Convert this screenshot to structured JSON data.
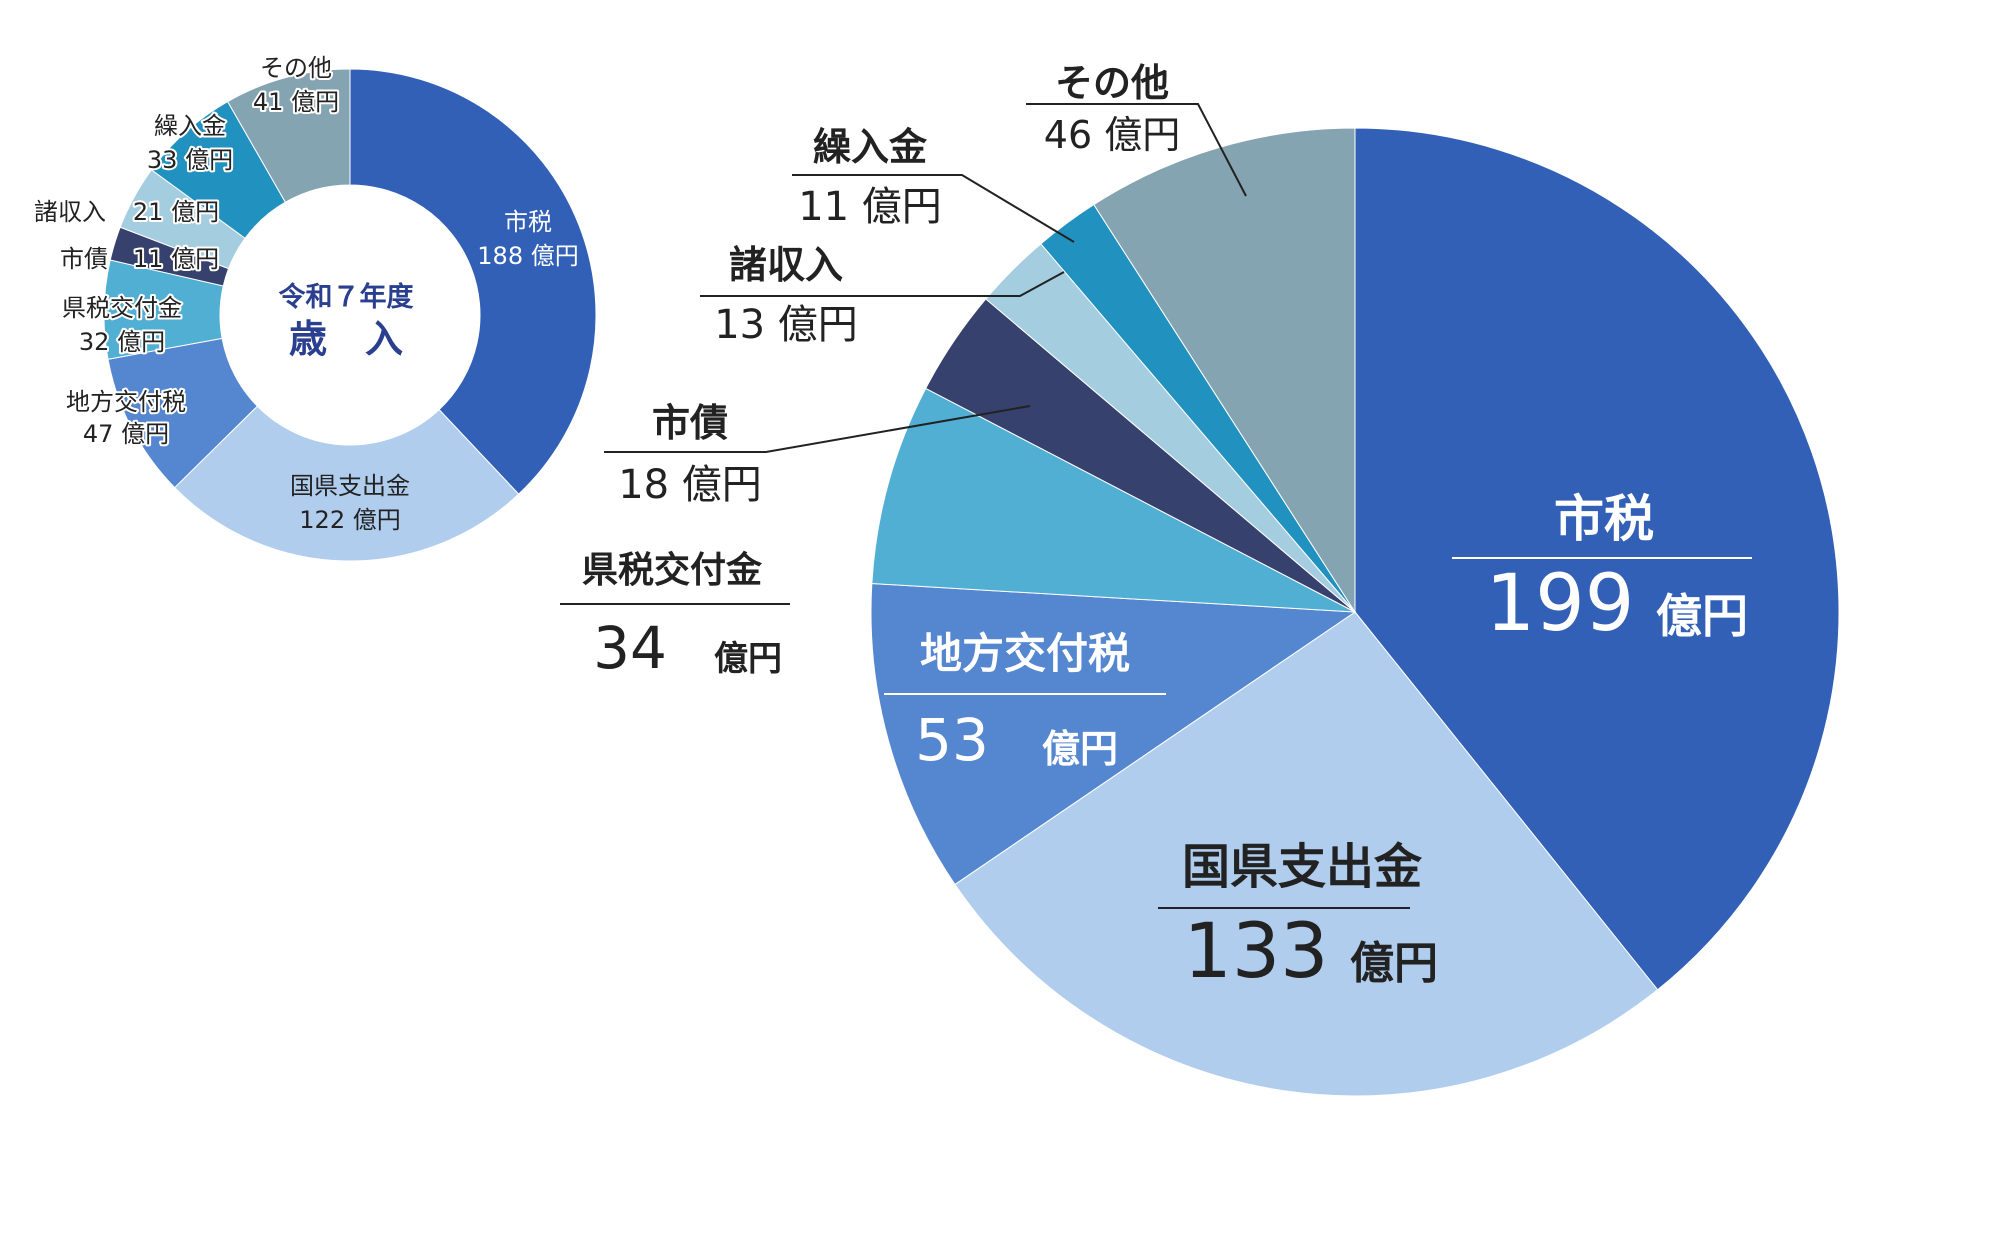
{
  "colors": {
    "市税": "#3160b6",
    "国県支出金": "#b0cdee",
    "地方交付税": "#5586d0",
    "県税交付金": "#51afd4",
    "市債": "#37416d",
    "諸収入": "#a5cde0",
    "繰入金": "#2191c0",
    "その他": "#85a4b1",
    "label_dark": "#222222",
    "label_light": "#ffffff",
    "center_text": "#2a3f8f"
  },
  "chart_data": [
    {
      "type": "pie",
      "variant": "donut",
      "title": "",
      "center_label": {
        "line1": "令和７年度",
        "line2": "歳　入"
      },
      "unit": "億円",
      "slices": [
        {
          "label": "市税",
          "value": 188,
          "value_text": "188 億円"
        },
        {
          "label": "国県支出金",
          "value": 122,
          "value_text": "122 億円"
        },
        {
          "label": "地方交付税",
          "value": 47,
          "value_text": "47 億円"
        },
        {
          "label": "県税交付金",
          "value": 32,
          "value_text": "32 億円"
        },
        {
          "label": "市債",
          "value": 11,
          "value_text": "11 億円"
        },
        {
          "label": "諸収入",
          "value": 21,
          "value_text": "21 億円"
        },
        {
          "label": "繰入金",
          "value": 33,
          "value_text": "33 億円"
        },
        {
          "label": "その他",
          "value": 41,
          "value_text": "41 億円"
        }
      ]
    },
    {
      "type": "pie",
      "title": "",
      "unit": "億円",
      "slices": [
        {
          "label": "市税",
          "value": 199,
          "value_text": "199"
        },
        {
          "label": "国県支出金",
          "value": 133,
          "value_text": "133"
        },
        {
          "label": "地方交付税",
          "value": 53,
          "value_text": "53"
        },
        {
          "label": "県税交付金",
          "value": 34,
          "value_text": "34"
        },
        {
          "label": "市債",
          "value": 18,
          "value_text": "18 億円"
        },
        {
          "label": "諸収入",
          "value": 13,
          "value_text": "13 億円"
        },
        {
          "label": "繰入金",
          "value": 11,
          "value_text": "11 億円"
        },
        {
          "label": "その他",
          "value": 46,
          "value_text": "46 億円"
        }
      ]
    }
  ]
}
